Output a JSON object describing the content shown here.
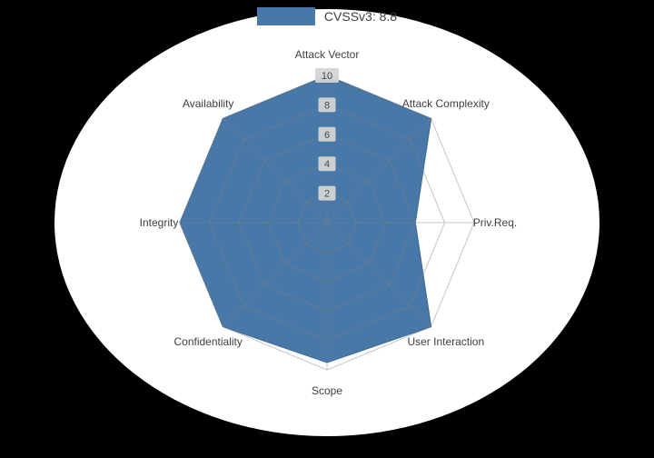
{
  "page": {
    "background_color": "#000000",
    "plot_background_color": "#ffffff"
  },
  "legend": {
    "label": "CVSSv3: 8.8",
    "swatch_color": "#4878a8",
    "position": "top-center"
  },
  "chart_data": {
    "type": "radar",
    "title": "",
    "categories": [
      "Attack Vector",
      "Attack Complexity",
      "Priv.Req.",
      "User Interaction",
      "Scope",
      "Confidentiality",
      "Integrity",
      "Availability"
    ],
    "series": [
      {
        "name": "CVSSv3: 8.8",
        "values": [
          10,
          10,
          6,
          10,
          9.5,
          10,
          10,
          10
        ],
        "fill_color": "#4878a8",
        "edge_color": "#3f6e9a"
      }
    ],
    "ticks": [
      2,
      4,
      6,
      8,
      10
    ],
    "rmax": 10,
    "grid": true,
    "grid_color": "#808080",
    "grid_opacity": 0.45,
    "axis_label_color": "#3f3f3f",
    "tick_text_color": "#4a4a4a",
    "tick_box_color": "#d4d4d4",
    "legend_position": "top"
  }
}
